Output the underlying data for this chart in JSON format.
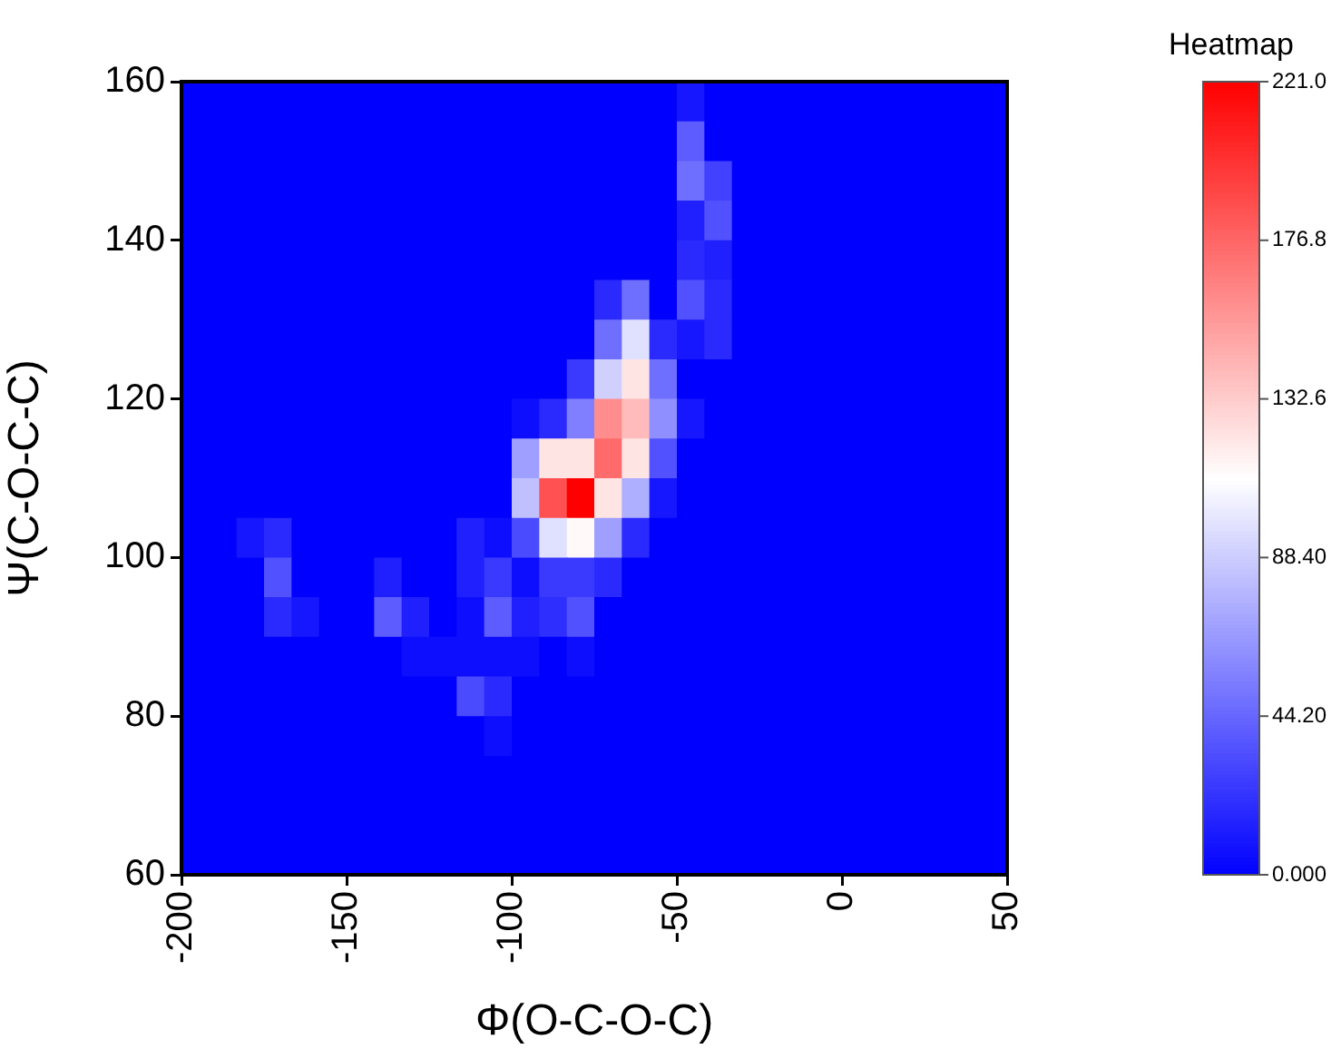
{
  "chart_data": {
    "type": "heatmap",
    "xlabel": "Φ(O-C-O-C)",
    "ylabel": "Ψ(C-O-C-C)",
    "clabel": "Heatmap",
    "xlim": [
      -200,
      50
    ],
    "xticks": [
      -200,
      -150,
      -100,
      -50,
      0,
      50
    ],
    "ylim": [
      60,
      160
    ],
    "yticks": [
      60,
      80,
      100,
      120,
      140,
      160
    ],
    "clim": [
      0,
      221
    ],
    "cticks": [
      {
        "value": 0,
        "label": "0.000"
      },
      {
        "value": 44.2,
        "label": "44.20"
      },
      {
        "value": 88.4,
        "label": "88.40"
      },
      {
        "value": 132.6,
        "label": "132.6"
      },
      {
        "value": 176.8,
        "label": "176.8"
      },
      {
        "value": 221,
        "label": "221.0"
      }
    ],
    "cells": [
      [
        0,
        0,
        0,
        0,
        0,
        0,
        0,
        0,
        0,
        0,
        0,
        0,
        0,
        0,
        0,
        0,
        0,
        0,
        10,
        0,
        0,
        0,
        0,
        0,
        0,
        0,
        0,
        0,
        0,
        0
      ],
      [
        0,
        0,
        0,
        0,
        0,
        0,
        0,
        0,
        0,
        0,
        0,
        0,
        0,
        0,
        0,
        0,
        0,
        0,
        40,
        0,
        0,
        0,
        0,
        0,
        0,
        0,
        0,
        0,
        0,
        0
      ],
      [
        0,
        0,
        0,
        0,
        0,
        0,
        0,
        0,
        0,
        0,
        0,
        0,
        0,
        0,
        0,
        0,
        0,
        0,
        48,
        28,
        0,
        0,
        0,
        0,
        0,
        0,
        0,
        0,
        0,
        0
      ],
      [
        0,
        0,
        0,
        0,
        0,
        0,
        0,
        0,
        0,
        0,
        0,
        0,
        0,
        0,
        0,
        0,
        0,
        0,
        14,
        35,
        0,
        0,
        0,
        0,
        0,
        0,
        0,
        0,
        0,
        0
      ],
      [
        0,
        0,
        0,
        0,
        0,
        0,
        0,
        0,
        0,
        0,
        0,
        0,
        0,
        0,
        0,
        0,
        0,
        0,
        18,
        14,
        0,
        0,
        0,
        0,
        0,
        0,
        0,
        0,
        0,
        0
      ],
      [
        0,
        0,
        0,
        0,
        0,
        0,
        0,
        0,
        0,
        0,
        0,
        0,
        0,
        0,
        0,
        18,
        48,
        0,
        35,
        18,
        0,
        0,
        0,
        0,
        0,
        0,
        0,
        0,
        0,
        0
      ],
      [
        0,
        0,
        0,
        0,
        0,
        0,
        0,
        0,
        0,
        0,
        0,
        0,
        0,
        0,
        0,
        48,
        97,
        18,
        10,
        18,
        0,
        0,
        0,
        0,
        0,
        0,
        0,
        0,
        0,
        0
      ],
      [
        0,
        0,
        0,
        0,
        0,
        0,
        0,
        0,
        0,
        0,
        0,
        0,
        0,
        0,
        25,
        90,
        122,
        48,
        0,
        0,
        0,
        0,
        0,
        0,
        0,
        0,
        0,
        0,
        0,
        0
      ],
      [
        0,
        0,
        0,
        0,
        0,
        0,
        0,
        0,
        0,
        0,
        0,
        0,
        6,
        18,
        55,
        160,
        140,
        62,
        10,
        0,
        0,
        0,
        0,
        0,
        0,
        0,
        0,
        0,
        0,
        0
      ],
      [
        0,
        0,
        0,
        0,
        0,
        0,
        0,
        0,
        0,
        0,
        0,
        0,
        69,
        122,
        122,
        175,
        122,
        35,
        0,
        0,
        0,
        0,
        0,
        0,
        0,
        0,
        0,
        0,
        0,
        0
      ],
      [
        0,
        0,
        0,
        0,
        0,
        0,
        0,
        0,
        0,
        0,
        0,
        0,
        83,
        186,
        221,
        122,
        76,
        10,
        0,
        0,
        0,
        0,
        0,
        0,
        0,
        0,
        0,
        0,
        0,
        0
      ],
      [
        0,
        0,
        10,
        18,
        0,
        0,
        0,
        0,
        0,
        0,
        14,
        6,
        32,
        97,
        113,
        69,
        18,
        0,
        0,
        0,
        0,
        0,
        0,
        0,
        0,
        0,
        0,
        0,
        0,
        0
      ],
      [
        0,
        0,
        0,
        35,
        0,
        0,
        0,
        14,
        0,
        0,
        14,
        25,
        6,
        25,
        25,
        18,
        0,
        0,
        0,
        0,
        0,
        0,
        0,
        0,
        0,
        0,
        0,
        0,
        0,
        0
      ],
      [
        0,
        0,
        0,
        18,
        10,
        0,
        0,
        40,
        14,
        0,
        6,
        40,
        14,
        20,
        35,
        0,
        0,
        0,
        0,
        0,
        0,
        0,
        0,
        0,
        0,
        0,
        0,
        0,
        0,
        0
      ],
      [
        0,
        0,
        0,
        0,
        0,
        0,
        0,
        0,
        6,
        6,
        6,
        6,
        6,
        0,
        6,
        0,
        0,
        0,
        0,
        0,
        0,
        0,
        0,
        0,
        0,
        0,
        0,
        0,
        0,
        0
      ],
      [
        0,
        0,
        0,
        0,
        0,
        0,
        0,
        0,
        0,
        0,
        32,
        18,
        0,
        0,
        0,
        0,
        0,
        0,
        0,
        0,
        0,
        0,
        0,
        0,
        0,
        0,
        0,
        0,
        0,
        0
      ],
      [
        0,
        0,
        0,
        0,
        0,
        0,
        0,
        0,
        0,
        0,
        0,
        6,
        0,
        0,
        0,
        0,
        0,
        0,
        0,
        0,
        0,
        0,
        0,
        0,
        0,
        0,
        0,
        0,
        0,
        0
      ],
      [
        0,
        0,
        0,
        0,
        0,
        0,
        0,
        0,
        0,
        0,
        0,
        0,
        0,
        0,
        0,
        0,
        0,
        0,
        0,
        0,
        0,
        0,
        0,
        0,
        0,
        0,
        0,
        0,
        0,
        0
      ],
      [
        0,
        0,
        0,
        0,
        0,
        0,
        0,
        0,
        0,
        0,
        0,
        0,
        0,
        0,
        0,
        0,
        0,
        0,
        0,
        0,
        0,
        0,
        0,
        0,
        0,
        0,
        0,
        0,
        0,
        0
      ],
      [
        0,
        0,
        0,
        0,
        0,
        0,
        0,
        0,
        0,
        0,
        0,
        0,
        0,
        0,
        0,
        0,
        0,
        0,
        0,
        0,
        0,
        0,
        0,
        0,
        0,
        0,
        0,
        0,
        0,
        0
      ]
    ]
  }
}
